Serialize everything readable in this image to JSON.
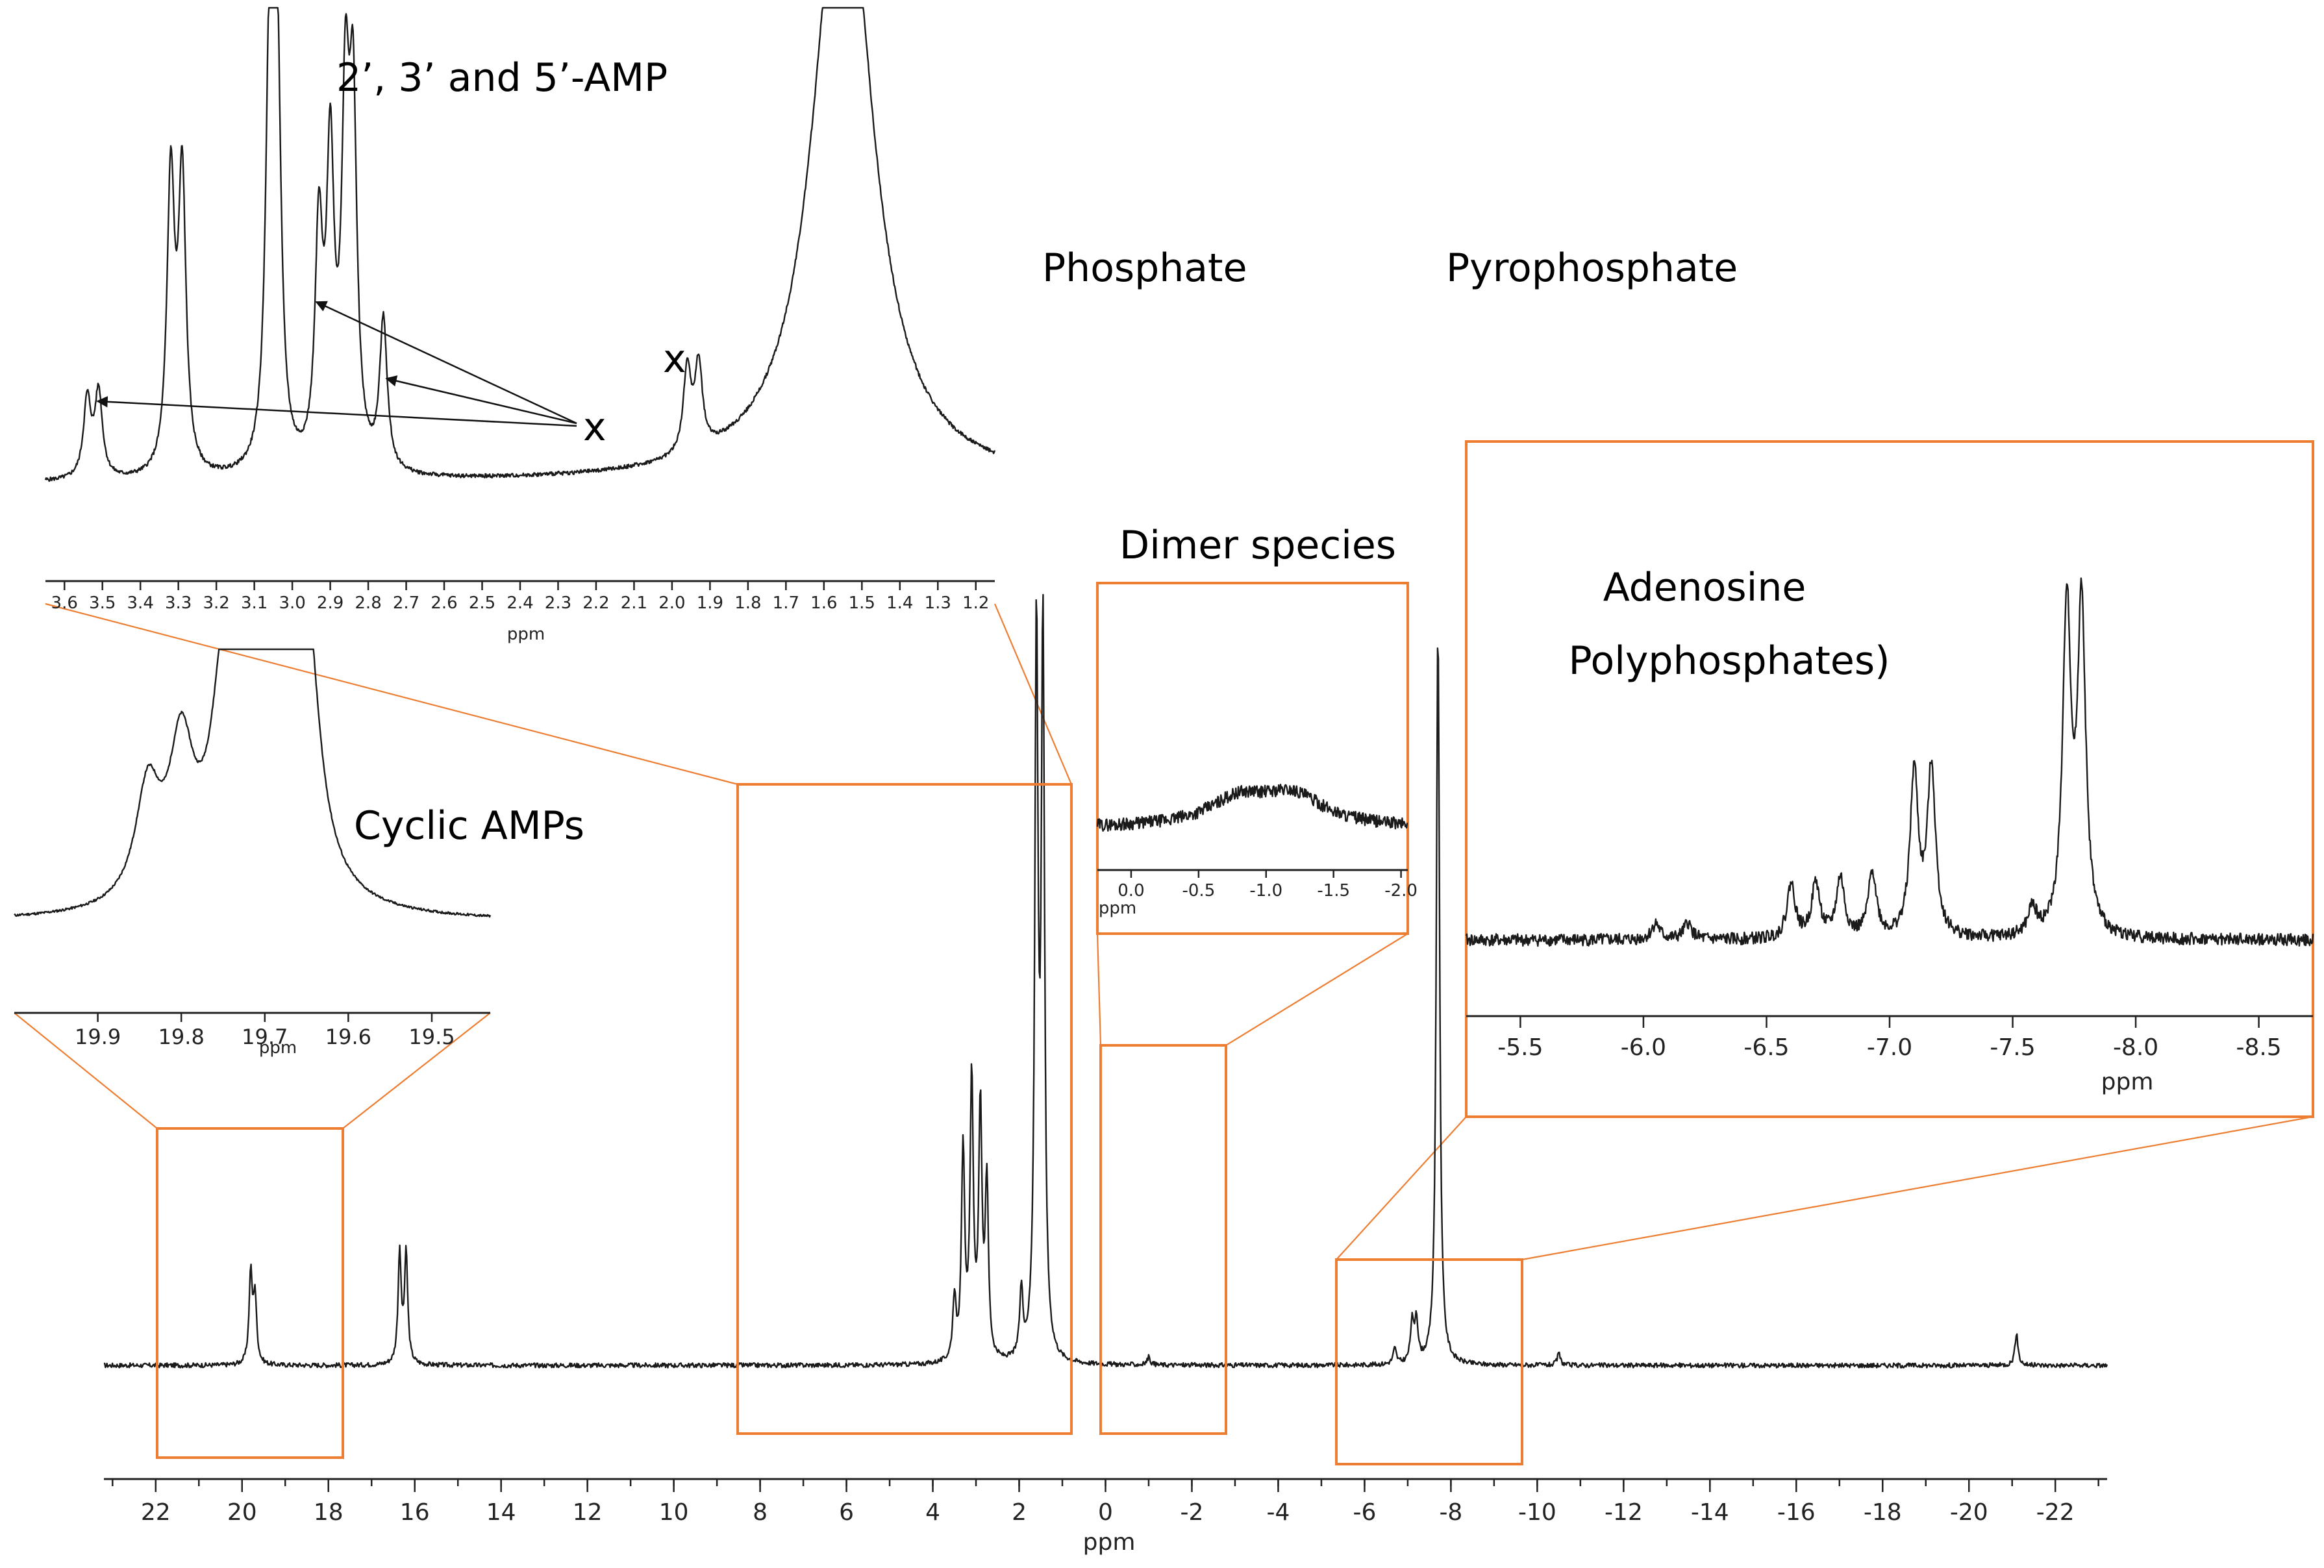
{
  "chart_data": [
    {
      "id": "main",
      "type": "line",
      "title": "",
      "xlabel": "ppm",
      "ylabel": "",
      "xlim": [
        23.2,
        -23.2
      ],
      "x_ticks": [
        22,
        20,
        18,
        16,
        14,
        12,
        10,
        8,
        6,
        4,
        2,
        0,
        -2,
        -4,
        -6,
        -8,
        -10,
        -12,
        -14,
        -16,
        -18,
        -20,
        -22
      ],
      "grid": false,
      "peaks": [
        {
          "ppm": 19.8,
          "height": 0.23
        },
        {
          "ppm": 19.7,
          "height": 0.17
        },
        {
          "ppm": 16.35,
          "height": 0.28
        },
        {
          "ppm": 16.2,
          "height": 0.28
        },
        {
          "ppm": 3.5,
          "height": 0.16
        },
        {
          "ppm": 3.3,
          "height": 0.54
        },
        {
          "ppm": 3.1,
          "height": 0.72
        },
        {
          "ppm": 2.9,
          "height": 0.64
        },
        {
          "ppm": 2.75,
          "height": 0.45
        },
        {
          "ppm": 1.95,
          "height": 0.17
        },
        {
          "ppm": 1.6,
          "height": 1.85
        },
        {
          "ppm": 1.45,
          "height": 1.85
        },
        {
          "ppm": -1.0,
          "height": 0.02
        },
        {
          "ppm": -6.7,
          "height": 0.04
        },
        {
          "ppm": -7.1,
          "height": 0.1
        },
        {
          "ppm": -7.2,
          "height": 0.11
        },
        {
          "ppm": -7.7,
          "height": 1.9
        },
        {
          "ppm": -10.5,
          "height": 0.03
        },
        {
          "ppm": -21.1,
          "height": 0.08
        }
      ],
      "annotations": [
        "Phosphate",
        "Pyrophosphate",
        "Dimer species"
      ]
    },
    {
      "id": "inset_amp",
      "type": "line",
      "title": "2’, 3’ and 5’-AMP",
      "xlabel": "ppm",
      "xlim": [
        3.65,
        1.15
      ],
      "x_ticks": [
        3.6,
        3.5,
        3.4,
        3.3,
        3.2,
        3.1,
        3.0,
        2.9,
        2.8,
        2.7,
        2.6,
        2.5,
        2.4,
        2.3,
        2.2,
        2.1,
        2.0,
        1.9,
        1.8,
        1.7,
        1.6,
        1.5,
        1.4,
        1.3,
        1.2
      ],
      "peaks": [
        {
          "ppm": 3.54,
          "height": 0.12
        },
        {
          "ppm": 3.51,
          "height": 0.13
        },
        {
          "ppm": 3.32,
          "height": 0.45
        },
        {
          "ppm": 3.29,
          "height": 0.45
        },
        {
          "ppm": 3.06,
          "height": 0.62
        },
        {
          "ppm": 3.04,
          "height": 0.62
        },
        {
          "ppm": 2.93,
          "height": 0.35
        },
        {
          "ppm": 2.9,
          "height": 0.46
        },
        {
          "ppm": 2.86,
          "height": 0.52
        },
        {
          "ppm": 2.84,
          "height": 0.52
        },
        {
          "ppm": 2.76,
          "height": 0.23
        },
        {
          "ppm": 1.96,
          "height": 0.13
        },
        {
          "ppm": 1.93,
          "height": 0.13
        },
        {
          "ppm": 1.55,
          "height": 1.0
        }
      ],
      "annotations": [
        "x",
        "x"
      ]
    },
    {
      "id": "inset_cyclic",
      "type": "line",
      "title": "Cyclic AMPs",
      "xlabel": "ppm",
      "xlim": [
        20.0,
        19.43
      ],
      "x_ticks": [
        19.9,
        19.8,
        19.7,
        19.6,
        19.5
      ],
      "peaks": [
        {
          "ppm": 19.84,
          "height": 0.37
        },
        {
          "ppm": 19.8,
          "height": 0.48
        },
        {
          "ppm": 19.75,
          "height": 0.44
        },
        {
          "ppm": 19.73,
          "height": 0.78
        },
        {
          "ppm": 19.7,
          "height": 0.92
        },
        {
          "ppm": 19.68,
          "height": 0.9
        },
        {
          "ppm": 19.65,
          "height": 0.75
        }
      ]
    },
    {
      "id": "inset_dimer",
      "type": "line",
      "title": "Dimer species",
      "xlabel": "ppm",
      "xlim": [
        0.25,
        -2.05
      ],
      "x_ticks": [
        0.0,
        -0.5,
        -1.0,
        -1.5,
        -2.0
      ],
      "peaks": [
        {
          "ppm": -0.8,
          "height": 0.25
        },
        {
          "ppm": -1.2,
          "height": 0.28
        }
      ]
    },
    {
      "id": "inset_adenosine",
      "type": "line",
      "title": "Adenosine Polyphosphates)",
      "xlabel": "ppm",
      "xlim": [
        -5.28,
        -8.72
      ],
      "x_ticks": [
        -5.5,
        -6.0,
        -6.5,
        -7.0,
        -7.5,
        -8.0,
        -8.5
      ],
      "peaks": [
        {
          "ppm": -6.05,
          "height": 0.06
        },
        {
          "ppm": -6.18,
          "height": 0.06
        },
        {
          "ppm": -6.6,
          "height": 0.2
        },
        {
          "ppm": -6.7,
          "height": 0.2
        },
        {
          "ppm": -6.8,
          "height": 0.22
        },
        {
          "ppm": -6.93,
          "height": 0.24
        },
        {
          "ppm": -7.1,
          "height": 0.6
        },
        {
          "ppm": -7.17,
          "height": 0.62
        },
        {
          "ppm": -7.58,
          "height": 0.1
        },
        {
          "ppm": -7.72,
          "height": 1.2
        },
        {
          "ppm": -7.78,
          "height": 1.2
        }
      ]
    }
  ],
  "labels": {
    "phosphate": "Phosphate",
    "pyrophosphate": "Pyrophosphate",
    "dimer": "Dimer species",
    "amp": "2’, 3’ and 5’-AMP",
    "cyclic": "Cyclic AMPs",
    "adenosine_line1": "Adenosine",
    "adenosine_line2": "Polyphosphates)",
    "x_mark": "x",
    "ppm": "ppm"
  },
  "colors": {
    "highlight_box": "#ED7D31",
    "spectrum": "#1a1a1a"
  }
}
